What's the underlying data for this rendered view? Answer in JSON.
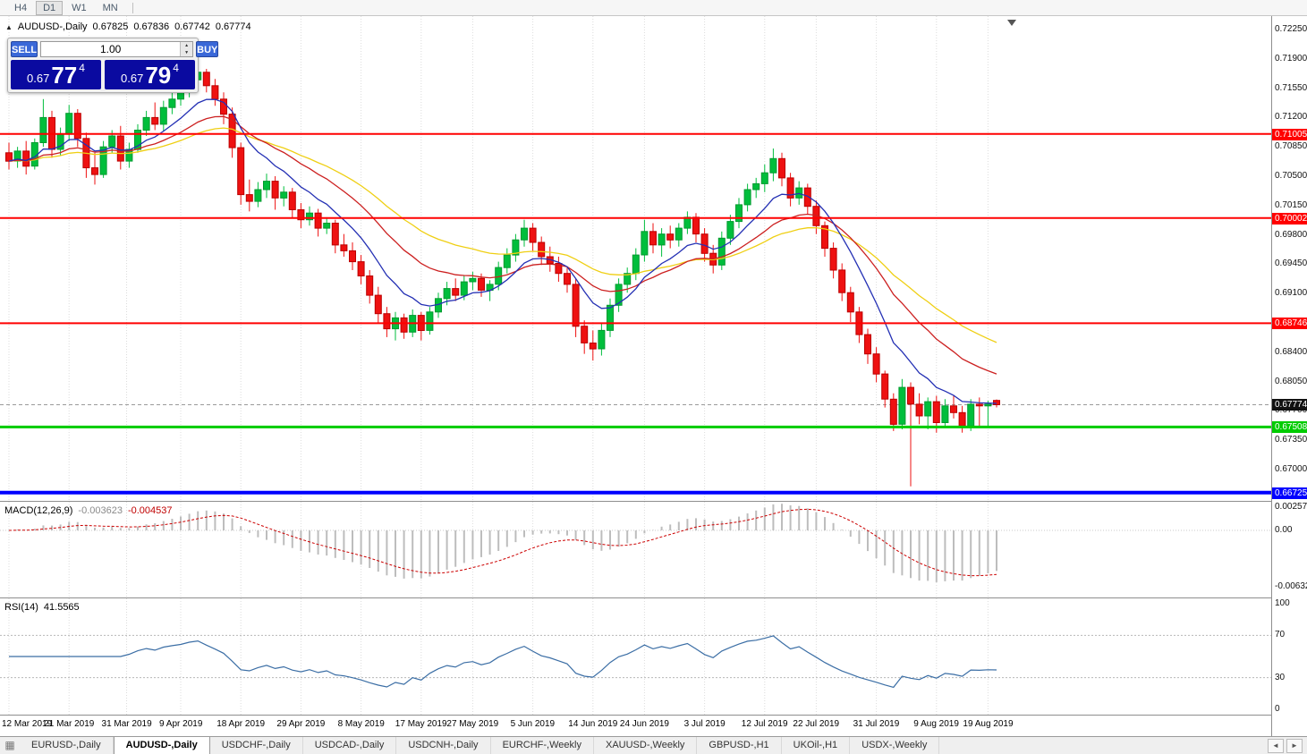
{
  "toolbar": {
    "periods": [
      "H4",
      "D1",
      "W1",
      "MN"
    ],
    "active_index": 1
  },
  "chart_header": {
    "symbol": "AUDUSD-,Daily",
    "open": "0.67825",
    "high": "0.67836",
    "low": "0.67742",
    "close": "0.67774"
  },
  "one_click": {
    "sell_label": "SELL",
    "buy_label": "BUY",
    "volume": "1.00",
    "sell_price": {
      "prefix": "0.67",
      "big": "77",
      "sup": "4"
    },
    "buy_price": {
      "prefix": "0.67",
      "big": "79",
      "sup": "4"
    }
  },
  "icons": {
    "collapse": "▲",
    "spinner_up": "▲",
    "spinner_down": "▼",
    "tab_list": "▦",
    "scroll_left": "◄",
    "scroll_right": "►"
  },
  "price_axis": {
    "ticks": [
      "0.72250",
      "0.71900",
      "0.71550",
      "0.71200",
      "0.70850",
      "0.70500",
      "0.70150",
      "0.69800",
      "0.69450",
      "0.69100",
      "0.68750",
      "0.68400",
      "0.68050",
      "0.67700",
      "0.67350",
      "0.67000"
    ]
  },
  "macd": {
    "label": "MACD(12,26,9)",
    "main": "-0.003623",
    "signal": "-0.004537",
    "axis": [
      "0.002574",
      "0.00",
      "-0.006326"
    ],
    "fast": 12,
    "slow": 26,
    "smoothing": 9
  },
  "rsi": {
    "label": "RSI(14)",
    "value": "41.5565",
    "axis": [
      "100",
      "70",
      "30",
      "0"
    ],
    "period": 14,
    "levels": [
      70,
      30
    ]
  },
  "date_axis": {
    "labels": [
      "12 Mar 2019",
      "21 Mar 2019",
      "31 Mar 2019",
      "9 Apr 2019",
      "18 Apr 2019",
      "29 Apr 2019",
      "8 May 2019",
      "17 May 2019",
      "27 May 2019",
      "5 Jun 2019",
      "14 Jun 2019",
      "24 Jun 2019",
      "3 Jul 2019",
      "12 Jul 2019",
      "22 Jul 2019",
      "31 Jul 2019",
      "9 Aug 2019",
      "19 Aug 2019"
    ],
    "indices": [
      0,
      7,
      13.7,
      20,
      27,
      34,
      41,
      48,
      54,
      61,
      68,
      74,
      81,
      88,
      94,
      101,
      108,
      114
    ]
  },
  "bottom_tabs": {
    "tabs": [
      "EURUSD-,Daily",
      "AUDUSD-,Daily",
      "USDCHF-,Daily",
      "USDCAD-,Daily",
      "USDCNH-,Daily",
      "EURCHF-,Weekly",
      "XAUUSD-,Weekly",
      "GBPUSD-,H1",
      "UKOil-,H1",
      "USDX-,Weekly"
    ],
    "active_index": 1
  },
  "colors": {
    "candle_up": "#00BE3C",
    "candle_up_border": "#009A2E",
    "candle_down": "#EE1111",
    "candle_down_border": "#BB0000",
    "ma_fast": "#2430B4",
    "ma_mid": "#CC2020",
    "ma_slow": "#EFCF13",
    "macd_hist": "#BDBDBD",
    "macd_signal": "#CC0000",
    "rsi_line": "#3B6EA5",
    "level_red": "#FF0000",
    "level_green": "#00CC00",
    "level_blue": "#0000FF",
    "current_tag": "#111111",
    "trade_button": "#3A68D8",
    "price_box": "#0A0AA0"
  },
  "chart_data": {
    "type": "candlestick",
    "symbol": "AUDUSD",
    "timeframe": "Daily",
    "current_price": {
      "value": 0.67774,
      "label": "0.67774"
    },
    "levels": [
      {
        "label": "0.71005",
        "value": 0.71005,
        "color": "#FF0000",
        "thickness": 2
      },
      {
        "label": "0.70002",
        "value": 0.70002,
        "color": "#FF0000",
        "thickness": 2
      },
      {
        "label": "0.68746",
        "value": 0.68746,
        "color": "#FF0000",
        "thickness": 2
      },
      {
        "label": "0.67508",
        "value": 0.67508,
        "color": "#00CC00",
        "thickness": 3
      },
      {
        "label": "0.66725",
        "value": 0.66725,
        "color": "#0000FF",
        "thickness": 4
      }
    ],
    "moving_averages": [
      {
        "period": 9,
        "type": "ema",
        "color": "#2430B4"
      },
      {
        "period": 20,
        "type": "ema",
        "color": "#CC2020"
      },
      {
        "period": 34,
        "type": "ema",
        "color": "#EFCF13"
      }
    ],
    "ohlc": [
      [
        0.7078,
        0.709,
        0.7058,
        0.7068
      ],
      [
        0.7068,
        0.7085,
        0.706,
        0.708
      ],
      [
        0.708,
        0.7092,
        0.7052,
        0.7062
      ],
      [
        0.7062,
        0.7095,
        0.7058,
        0.709
      ],
      [
        0.709,
        0.7142,
        0.7085,
        0.712
      ],
      [
        0.712,
        0.7128,
        0.7072,
        0.7082
      ],
      [
        0.7082,
        0.7108,
        0.7075,
        0.71
      ],
      [
        0.71,
        0.7135,
        0.7092,
        0.7125
      ],
      [
        0.7125,
        0.713,
        0.7085,
        0.7095
      ],
      [
        0.7095,
        0.7102,
        0.7048,
        0.706
      ],
      [
        0.706,
        0.7078,
        0.704,
        0.7052
      ],
      [
        0.7052,
        0.7092,
        0.7048,
        0.7085
      ],
      [
        0.7085,
        0.7105,
        0.7078,
        0.7098
      ],
      [
        0.7098,
        0.711,
        0.7058,
        0.7068
      ],
      [
        0.7068,
        0.709,
        0.706,
        0.7082
      ],
      [
        0.7082,
        0.7112,
        0.7078,
        0.7105
      ],
      [
        0.7105,
        0.7128,
        0.7098,
        0.712
      ],
      [
        0.712,
        0.7138,
        0.7105,
        0.7112
      ],
      [
        0.7112,
        0.714,
        0.7104,
        0.7132
      ],
      [
        0.7132,
        0.715,
        0.7124,
        0.7142
      ],
      [
        0.7142,
        0.7158,
        0.7134,
        0.715
      ],
      [
        0.715,
        0.7172,
        0.7144,
        0.7165
      ],
      [
        0.7165,
        0.718,
        0.7158,
        0.7174
      ],
      [
        0.7174,
        0.7178,
        0.715,
        0.7158
      ],
      [
        0.7158,
        0.7166,
        0.7134,
        0.7142
      ],
      [
        0.7142,
        0.715,
        0.7112,
        0.7124
      ],
      [
        0.7124,
        0.7132,
        0.7072,
        0.7084
      ],
      [
        0.7084,
        0.709,
        0.7016,
        0.7028
      ],
      [
        0.7028,
        0.7046,
        0.7008,
        0.702
      ],
      [
        0.702,
        0.7043,
        0.7013,
        0.7034
      ],
      [
        0.7034,
        0.7053,
        0.7024,
        0.7044
      ],
      [
        0.7044,
        0.705,
        0.701,
        0.7024
      ],
      [
        0.7024,
        0.7038,
        0.7014,
        0.7031
      ],
      [
        0.7031,
        0.7036,
        0.7,
        0.701
      ],
      [
        0.701,
        0.7018,
        0.6988,
        0.6998
      ],
      [
        0.6998,
        0.7014,
        0.6991,
        0.7006
      ],
      [
        0.7006,
        0.7011,
        0.6978,
        0.6988
      ],
      [
        0.6988,
        0.7001,
        0.6981,
        0.6994
      ],
      [
        0.6994,
        0.6998,
        0.6958,
        0.6968
      ],
      [
        0.6968,
        0.6981,
        0.6954,
        0.6961
      ],
      [
        0.6961,
        0.6971,
        0.6938,
        0.6948
      ],
      [
        0.6948,
        0.6956,
        0.6921,
        0.6931
      ],
      [
        0.6931,
        0.6938,
        0.6898,
        0.6908
      ],
      [
        0.6908,
        0.6918,
        0.6874,
        0.6886
      ],
      [
        0.6886,
        0.6894,
        0.6858,
        0.6868
      ],
      [
        0.6868,
        0.6888,
        0.6854,
        0.6881
      ],
      [
        0.6881,
        0.6886,
        0.6856,
        0.6864
      ],
      [
        0.6864,
        0.6891,
        0.6858,
        0.6884
      ],
      [
        0.6884,
        0.6888,
        0.6854,
        0.6866
      ],
      [
        0.6866,
        0.6894,
        0.6861,
        0.6888
      ],
      [
        0.6888,
        0.6911,
        0.6881,
        0.6904
      ],
      [
        0.6904,
        0.6924,
        0.6896,
        0.6916
      ],
      [
        0.6916,
        0.6928,
        0.6901,
        0.6908
      ],
      [
        0.6908,
        0.6931,
        0.6902,
        0.6924
      ],
      [
        0.6924,
        0.6936,
        0.6914,
        0.6928
      ],
      [
        0.6928,
        0.6934,
        0.6906,
        0.6914
      ],
      [
        0.6914,
        0.6926,
        0.6901,
        0.6921
      ],
      [
        0.6921,
        0.6948,
        0.6914,
        0.6941
      ],
      [
        0.6941,
        0.6964,
        0.6934,
        0.6956
      ],
      [
        0.6956,
        0.6981,
        0.6948,
        0.6974
      ],
      [
        0.6974,
        0.6998,
        0.6966,
        0.6988
      ],
      [
        0.6988,
        0.6994,
        0.6961,
        0.6971
      ],
      [
        0.6971,
        0.6978,
        0.6944,
        0.6954
      ],
      [
        0.6954,
        0.6966,
        0.6936,
        0.6946
      ],
      [
        0.6946,
        0.6954,
        0.6924,
        0.6934
      ],
      [
        0.6934,
        0.6941,
        0.6911,
        0.6921
      ],
      [
        0.6921,
        0.6928,
        0.6858,
        0.6871
      ],
      [
        0.6871,
        0.6878,
        0.6838,
        0.6851
      ],
      [
        0.6851,
        0.6866,
        0.683,
        0.6844
      ],
      [
        0.6844,
        0.6874,
        0.6836,
        0.6866
      ],
      [
        0.6866,
        0.6904,
        0.6858,
        0.6896
      ],
      [
        0.6896,
        0.6928,
        0.6888,
        0.6921
      ],
      [
        0.6921,
        0.6941,
        0.6911,
        0.6934
      ],
      [
        0.6934,
        0.6964,
        0.6926,
        0.6956
      ],
      [
        0.6956,
        0.6998,
        0.6948,
        0.6984
      ],
      [
        0.6984,
        0.6994,
        0.6958,
        0.6968
      ],
      [
        0.6968,
        0.6988,
        0.6954,
        0.6981
      ],
      [
        0.6981,
        0.6991,
        0.6964,
        0.6974
      ],
      [
        0.6974,
        0.6994,
        0.6966,
        0.6988
      ],
      [
        0.6988,
        0.7008,
        0.6981,
        0.7001
      ],
      [
        0.7001,
        0.7006,
        0.6971,
        0.6981
      ],
      [
        0.6981,
        0.6988,
        0.6948,
        0.6958
      ],
      [
        0.6958,
        0.6968,
        0.6934,
        0.6944
      ],
      [
        0.6944,
        0.6984,
        0.6938,
        0.6976
      ],
      [
        0.6976,
        0.7004,
        0.6968,
        0.6996
      ],
      [
        0.6996,
        0.7024,
        0.6988,
        0.7016
      ],
      [
        0.7016,
        0.7041,
        0.7008,
        0.7034
      ],
      [
        0.7034,
        0.7048,
        0.7024,
        0.7041
      ],
      [
        0.7041,
        0.7064,
        0.7031,
        0.7054
      ],
      [
        0.7054,
        0.7083,
        0.7044,
        0.7071
      ],
      [
        0.7071,
        0.7078,
        0.7038,
        0.7048
      ],
      [
        0.7048,
        0.7054,
        0.7014,
        0.7024
      ],
      [
        0.7024,
        0.7044,
        0.7016,
        0.7036
      ],
      [
        0.7036,
        0.7041,
        0.7004,
        0.7014
      ],
      [
        0.7014,
        0.7021,
        0.6981,
        0.6991
      ],
      [
        0.6991,
        0.6996,
        0.6954,
        0.6964
      ],
      [
        0.6964,
        0.6971,
        0.6928,
        0.6938
      ],
      [
        0.6938,
        0.6946,
        0.6901,
        0.6911
      ],
      [
        0.6911,
        0.6918,
        0.6876,
        0.6888
      ],
      [
        0.6888,
        0.6894,
        0.6851,
        0.6861
      ],
      [
        0.6861,
        0.6868,
        0.6826,
        0.6838
      ],
      [
        0.6838,
        0.6846,
        0.6804,
        0.6814
      ],
      [
        0.6814,
        0.6818,
        0.6774,
        0.6784
      ],
      [
        0.6784,
        0.6791,
        0.6746,
        0.6754
      ],
      [
        0.6754,
        0.6808,
        0.6748,
        0.6798
      ],
      [
        0.6798,
        0.6804,
        0.668,
        0.6778
      ],
      [
        0.6778,
        0.6791,
        0.6754,
        0.6764
      ],
      [
        0.6764,
        0.6786,
        0.6748,
        0.6781
      ],
      [
        0.6781,
        0.6788,
        0.6744,
        0.6756
      ],
      [
        0.6756,
        0.6784,
        0.675,
        0.6776
      ],
      [
        0.6776,
        0.6788,
        0.6761,
        0.6768
      ],
      [
        0.6768,
        0.6776,
        0.6744,
        0.6752
      ],
      [
        0.6752,
        0.6784,
        0.6746,
        0.6778
      ],
      [
        0.6778,
        0.6786,
        0.675,
        0.6776
      ],
      [
        0.6776,
        0.6782,
        0.6752,
        0.6778
      ],
      [
        0.67825,
        0.67836,
        0.67742,
        0.67774
      ]
    ]
  }
}
